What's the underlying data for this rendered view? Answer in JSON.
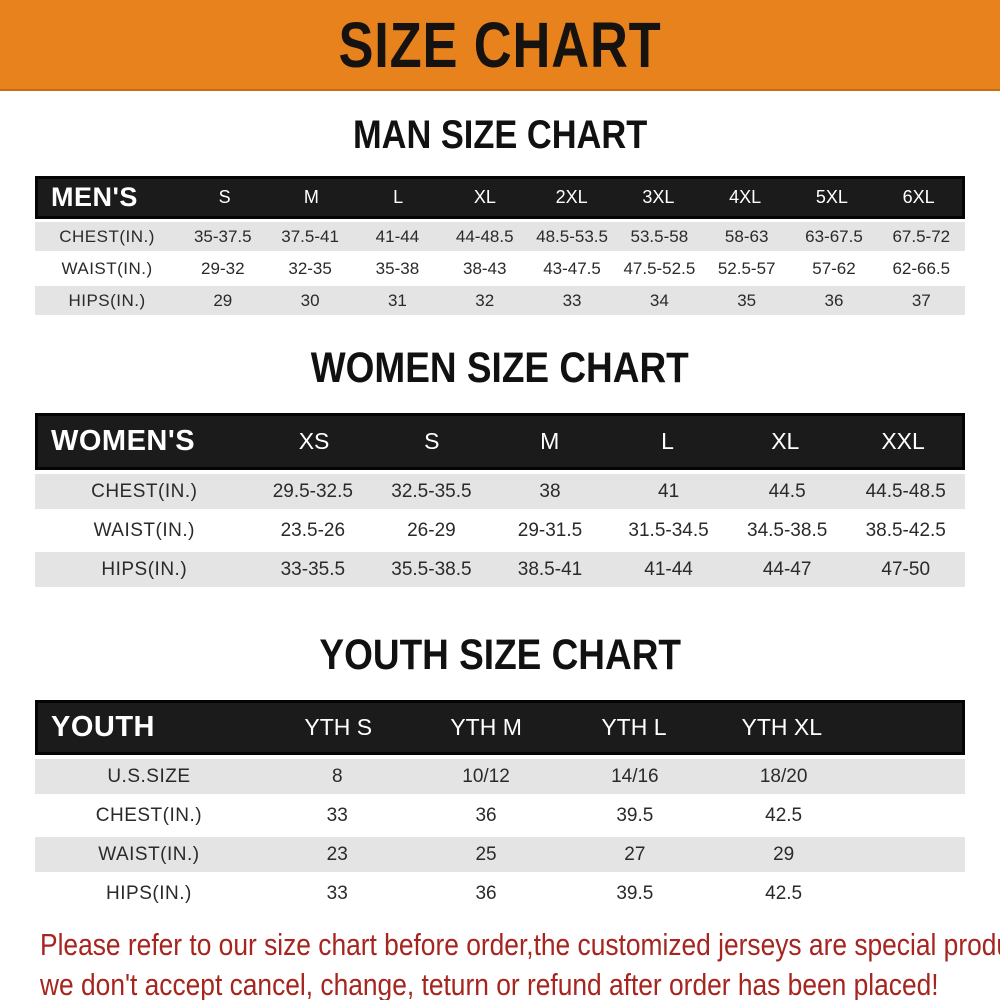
{
  "banner": {
    "title": "SIZE CHART",
    "bg_color": "#E8821D",
    "text_color": "#151210"
  },
  "colors": {
    "header_bar": "#1b1b1b",
    "row_gray": "#e4e4e4",
    "row_white": "#ffffff",
    "note_red": "#A6251F"
  },
  "sections": {
    "man": {
      "title": "MAN SIZE CHART",
      "header": [
        "MEN'S",
        "S",
        "M",
        "L",
        "XL",
        "2XL",
        "3XL",
        "4XL",
        "5XL",
        "6XL"
      ],
      "rows": [
        {
          "label": "CHEST(IN.)",
          "values": [
            "35-37.5",
            "37.5-41",
            "41-44",
            "44-48.5",
            "48.5-53.5",
            "53.5-58",
            "58-63",
            "63-67.5",
            "67.5-72"
          ]
        },
        {
          "label": "WAIST(IN.)",
          "values": [
            "29-32",
            "32-35",
            "35-38",
            "38-43",
            "43-47.5",
            "47.5-52.5",
            "52.5-57",
            "57-62",
            "62-66.5"
          ]
        },
        {
          "label": "HIPS(IN.)",
          "values": [
            "29",
            "30",
            "31",
            "32",
            "33",
            "34",
            "35",
            "36",
            "37"
          ]
        }
      ]
    },
    "women": {
      "title": "WOMEN SIZE CHART",
      "header": [
        "WOMEN'S",
        "XS",
        "S",
        "M",
        "L",
        "XL",
        "XXL"
      ],
      "rows": [
        {
          "label": "CHEST(IN.)",
          "values": [
            "29.5-32.5",
            "32.5-35.5",
            "38",
            "41",
            "44.5",
            "44.5-48.5"
          ]
        },
        {
          "label": "WAIST(IN.)",
          "values": [
            "23.5-26",
            "26-29",
            "29-31.5",
            "31.5-34.5",
            "34.5-38.5",
            "38.5-42.5"
          ]
        },
        {
          "label": "HIPS(IN.)",
          "values": [
            "33-35.5",
            "35.5-38.5",
            "38.5-41",
            "41-44",
            "44-47",
            "47-50"
          ]
        }
      ]
    },
    "youth": {
      "title": "YOUTH SIZE CHART",
      "header": [
        "YOUTH",
        "YTH S",
        "YTH M",
        "YTH L",
        "YTH XL"
      ],
      "rows": [
        {
          "label": "U.S.SIZE",
          "values": [
            "8",
            "10/12",
            "14/16",
            "18/20"
          ]
        },
        {
          "label": "CHEST(IN.)",
          "values": [
            "33",
            "36",
            "39.5",
            "42.5"
          ]
        },
        {
          "label": "WAIST(IN.)",
          "values": [
            "23",
            "25",
            "27",
            "29"
          ]
        },
        {
          "label": "HIPS(IN.)",
          "values": [
            "33",
            "36",
            "39.5",
            "42.5"
          ]
        }
      ]
    }
  },
  "footer": {
    "line1": "Please refer to our size chart before order,the customized jerseys are special products,",
    "line2": "we don't accept cancel, change, teturn or refund after order has been placed!"
  }
}
